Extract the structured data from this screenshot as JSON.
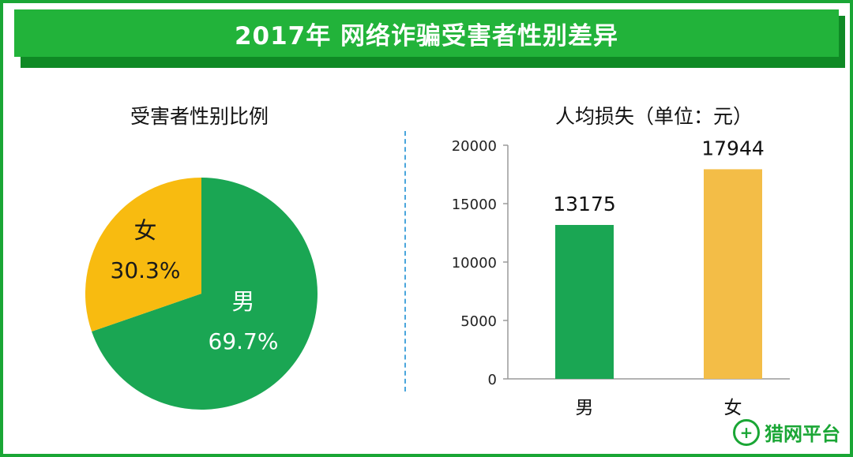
{
  "title": "2017年 网络诈骗受害者性别差异",
  "colors": {
    "male": "#1aa653",
    "female": "#f8bb10",
    "female_bar": "#f3bd47",
    "brand": "#22b33a"
  },
  "chart_data": [
    {
      "type": "pie",
      "title": "受害者性别比例",
      "slices": [
        {
          "label": "男",
          "value": 69.7,
          "value_label": "69.7%",
          "color": "#1aa653"
        },
        {
          "label": "女",
          "value": 30.3,
          "value_label": "30.3%",
          "color": "#f8bb10"
        }
      ]
    },
    {
      "type": "bar",
      "title": "人均损失（单位：元）",
      "categories": [
        "男",
        "女"
      ],
      "values": [
        13175,
        17944
      ],
      "value_labels": [
        "13175",
        "17944"
      ],
      "colors": [
        "#1aa653",
        "#f3bd47"
      ],
      "ylim": [
        0,
        20000
      ],
      "yticks": [
        0,
        5000,
        10000,
        15000,
        20000
      ],
      "grid": false
    }
  ],
  "logo": {
    "text": "猎网平台",
    "icon": "shield-plus-icon"
  }
}
